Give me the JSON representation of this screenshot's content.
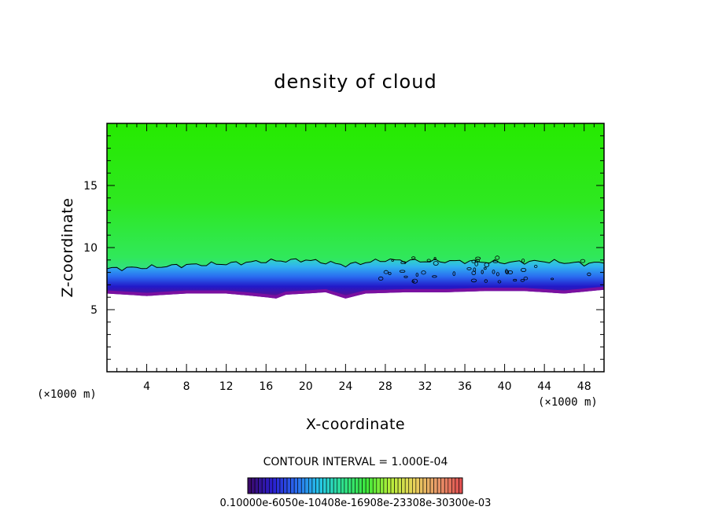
{
  "chart_data": {
    "type": "heatmap",
    "title": "density of cloud",
    "xlabel": "X-coordinate",
    "ylabel": "Z-coordinate",
    "x_unit": "(×1000 m)",
    "y_unit": "(×1000 m)",
    "xlim": [
      0,
      50
    ],
    "ylim": [
      0,
      20
    ],
    "x_ticks": [
      "4",
      "8",
      "12",
      "16",
      "20",
      "24",
      "28",
      "32",
      "36",
      "40",
      "44",
      "48"
    ],
    "y_ticks": [
      "5",
      "10",
      "15"
    ],
    "contour_interval_text": "CONTOUR INTERVAL = 1.000E-04",
    "colorbar": {
      "colors": [
        "#3b0a6a",
        "#2a1fd0",
        "#2a6cf0",
        "#26c8e8",
        "#2ee08a",
        "#3ee83a",
        "#b6ee3a",
        "#e8d25a",
        "#e89a6a",
        "#e05050"
      ],
      "labels_text": "0.10000e-6050e-10408e-16908e-23308e-30300e-03"
    },
    "cloud_layer": {
      "base_z": 6.3,
      "top_z": 8.6,
      "cloud_base_profile": [
        [
          0,
          6.3
        ],
        [
          4,
          6.1
        ],
        [
          8,
          6.3
        ],
        [
          12,
          6.3
        ],
        [
          16,
          6.0
        ],
        [
          17,
          5.9
        ],
        [
          18,
          6.2
        ],
        [
          22,
          6.4
        ],
        [
          24,
          5.9
        ],
        [
          26,
          6.3
        ],
        [
          30,
          6.4
        ],
        [
          34,
          6.4
        ],
        [
          38,
          6.5
        ],
        [
          42,
          6.5
        ],
        [
          46,
          6.3
        ],
        [
          50,
          6.6
        ]
      ],
      "contour_top_profile": [
        [
          0,
          8.3
        ],
        [
          4,
          8.4
        ],
        [
          8,
          8.6
        ],
        [
          12,
          8.7
        ],
        [
          16,
          8.9
        ],
        [
          20,
          9.0
        ],
        [
          24,
          8.6
        ],
        [
          28,
          9.0
        ],
        [
          32,
          8.9
        ],
        [
          36,
          8.9
        ],
        [
          40,
          8.8
        ],
        [
          44,
          8.9
        ],
        [
          48,
          8.7
        ],
        [
          50,
          8.8
        ]
      ]
    },
    "background_color_above": "#22e800"
  }
}
